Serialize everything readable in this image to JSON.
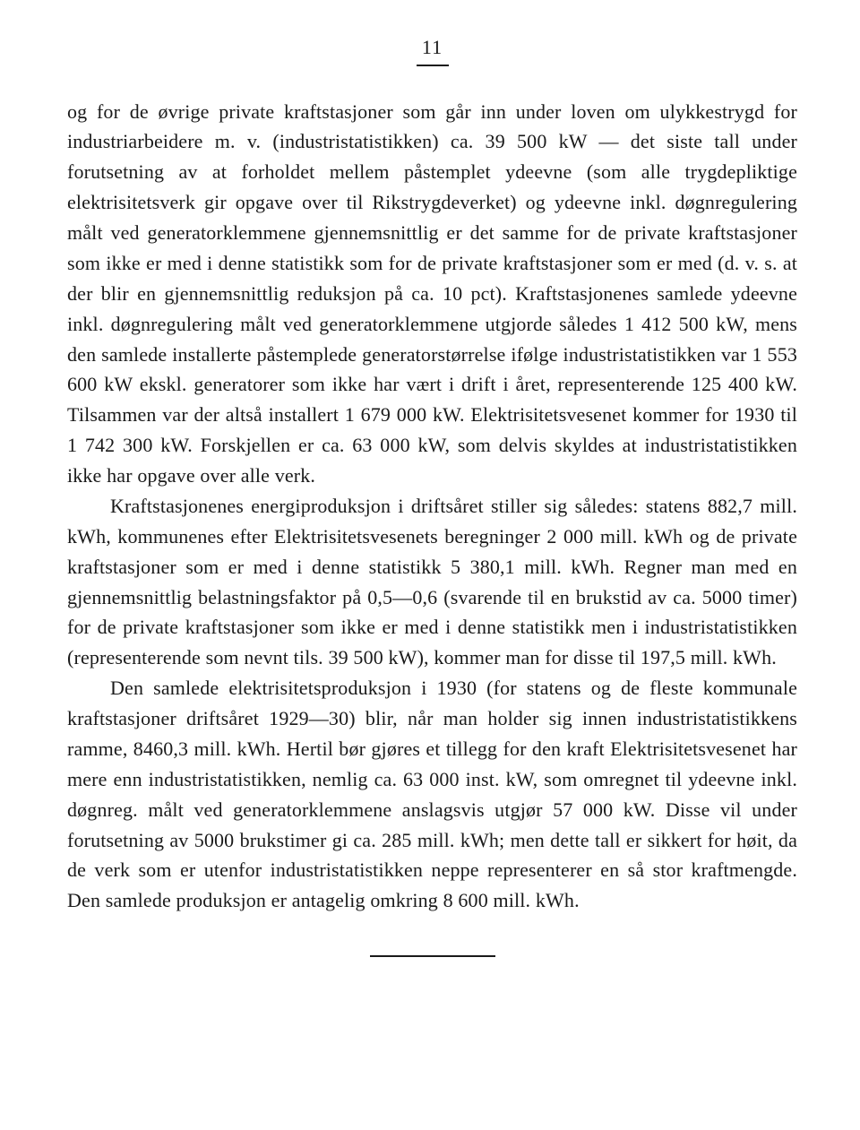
{
  "page_number": "11",
  "paragraphs": [
    "og for de øvrige private kraftstasjoner som går inn under loven om ulykkestrygd for industriarbeidere m. v. (industristatistikken) ca. 39 500 kW — det siste tall under forutsetning av at forholdet mellem påstemplet ydeevne (som alle trygdepliktige elektrisitetsverk gir opgave over til Rikstrygdeverket) og ydeevne inkl. døgnregulering målt ved generatorklemmene gjennemsnittlig er det samme for de private kraftstasjoner som ikke er med i denne statistikk som for de private kraftstasjoner som er med (d. v. s. at der blir en gjennemsnittlig reduksjon på ca. 10 pct). Kraftstasjonenes samlede ydeevne inkl. døgnregulering målt ved generatorklemmene utgjorde således 1 412 500 kW, mens den samlede installerte påstemplede generatorstørrelse ifølge industristatistikken var 1 553 600 kW ekskl. generatorer som ikke har vært i drift i året, representerende 125 400 kW. Tilsammen var der altså installert 1 679 000 kW. Elektrisitetsvesenet kommer for 1930 til 1 742 300 kW. Forskjellen er ca. 63 000 kW, som delvis skyldes at industristatistikken ikke har opgave over alle verk.",
    "Kraftstasjonenes energiproduksjon i driftsåret stiller sig således: statens 882,7 mill. kWh, kommunenes efter Elektrisitetsvesenets beregninger 2 000 mill. kWh og de private kraftstasjoner som er med i denne statistikk 5 380,1 mill. kWh. Regner man med en gjennemsnittlig belastningsfaktor på 0,5—0,6 (svarende til en brukstid av ca. 5000 timer) for de private kraftstasjoner som ikke er med i denne statistikk men i industristatistikken (representerende som nevnt tils. 39 500 kW), kommer man for disse til 197,5 mill. kWh.",
    "Den samlede elektrisitetsproduksjon i 1930 (for statens og de fleste kommunale kraftstasjoner driftsåret 1929—30) blir, når man holder sig innen industristatistikkens ramme, 8460,3 mill. kWh. Hertil bør gjøres et tillegg for den kraft Elektrisitetsvesenet har mere enn industristatistikken, nemlig ca. 63 000 inst. kW, som omregnet til ydeevne inkl. døgnreg. målt ved generatorklemmene anslagsvis utgjør 57 000 kW. Disse vil under forutsetning av 5000 brukstimer gi ca. 285 mill. kWh; men dette tall er sikkert for høit, da de verk som er utenfor industristatistikken neppe representerer en så stor kraftmengde. Den samlede produksjon er antagelig omkring 8 600 mill. kWh."
  ],
  "indent": [
    false,
    true,
    true
  ]
}
